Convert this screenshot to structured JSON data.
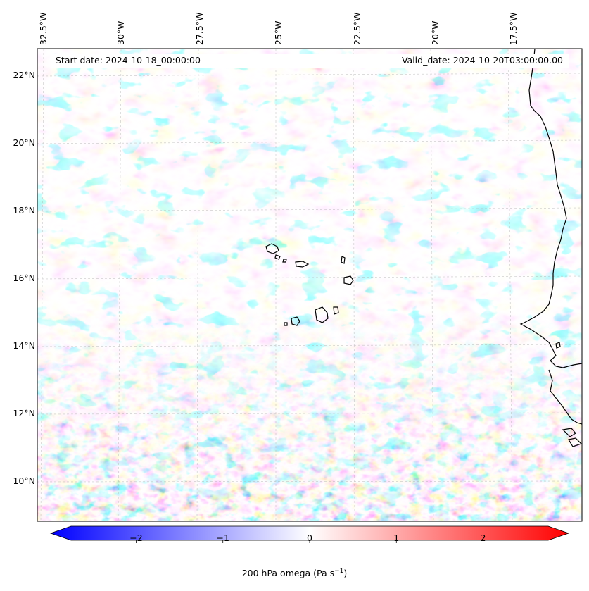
{
  "map": {
    "longitude_labels": [
      "32.5°W",
      "30°W",
      "27.5°W",
      "25°W",
      "22.5°W",
      "20°W",
      "17.5°W"
    ],
    "latitude_labels": [
      "22°N",
      "20°N",
      "18°N",
      "16°N",
      "14°N",
      "12°N",
      "10°N"
    ],
    "start_date_text": "Start date: 2024-10-18_00:00:00",
    "valid_date_text": "Valid_date: 2024-10-20T03:00:00.00",
    "region": "Cabo Verde islands and West African coast",
    "gridlines": true
  },
  "colorbar": {
    "label": "200 hPa omega (Pa s",
    "label_superscript": "−1",
    "label_suffix": ")",
    "ticks": [
      "−2",
      "−1",
      "0",
      "1",
      "2"
    ],
    "range": [
      -2.75,
      2.75
    ],
    "colormap": "bwr",
    "colors": {
      "negative": "#0000ff",
      "neutral": "#ffffff",
      "positive": "#ff0000"
    },
    "extend": "both"
  }
}
